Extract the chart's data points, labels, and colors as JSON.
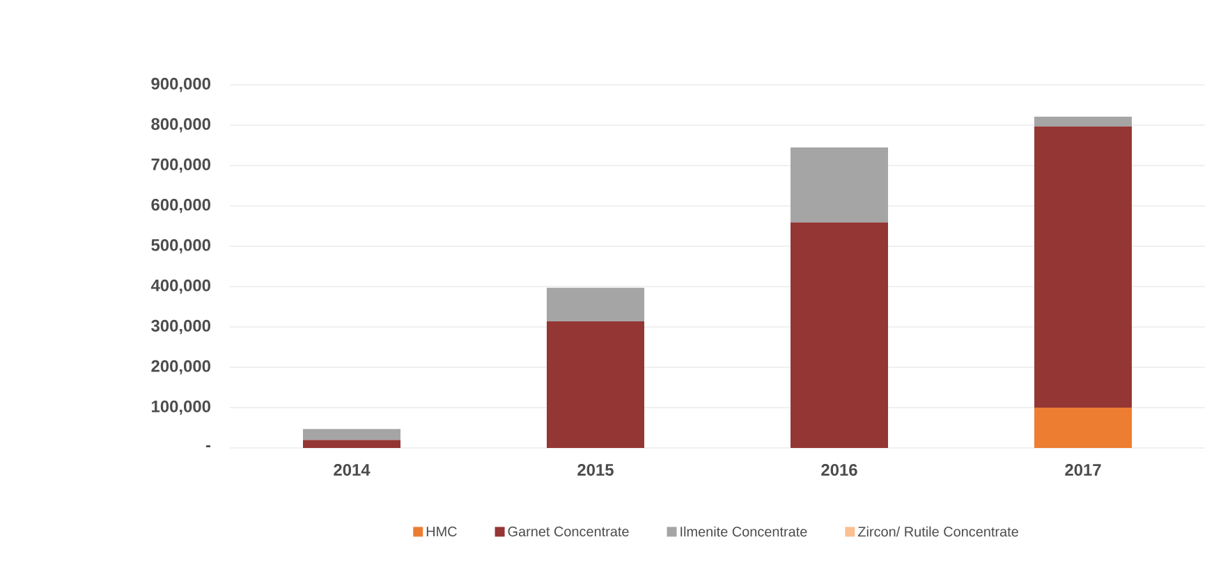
{
  "chart_data": {
    "type": "bar",
    "stacked": true,
    "categories": [
      "2014",
      "2015",
      "2016",
      "2017"
    ],
    "series": [
      {
        "name": "HMC",
        "color": "#ed7d31",
        "values": [
          0,
          0,
          0,
          100000
        ]
      },
      {
        "name": "Garnet Concentrate",
        "color": "#943634",
        "values": [
          20000,
          314000,
          559000,
          697000
        ]
      },
      {
        "name": "Ilmenite Concentrate",
        "color": "#a5a5a5",
        "values": [
          27000,
          83000,
          186000,
          24000
        ]
      },
      {
        "name": "Zircon/ Rutile Concentrate",
        "color": "#fac090",
        "values": [
          0,
          0,
          0,
          0
        ]
      }
    ],
    "ylim": [
      0,
      900000
    ],
    "yticks": [
      {
        "value": 0,
        "label": "-"
      },
      {
        "value": 100000,
        "label": "100,000"
      },
      {
        "value": 200000,
        "label": "200,000"
      },
      {
        "value": 300000,
        "label": "300,000"
      },
      {
        "value": 400000,
        "label": "400,000"
      },
      {
        "value": 500000,
        "label": "500,000"
      },
      {
        "value": 600000,
        "label": "600,000"
      },
      {
        "value": 700000,
        "label": "700,000"
      },
      {
        "value": 800000,
        "label": "800,000"
      },
      {
        "value": 900000,
        "label": "900,000"
      }
    ],
    "grid": "y",
    "legend": "bottom"
  }
}
